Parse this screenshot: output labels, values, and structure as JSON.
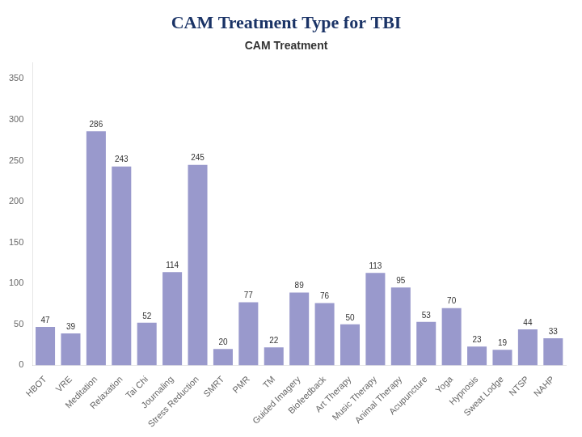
{
  "chart_data": {
    "type": "bar",
    "title": "CAM Treatment Type for TBI",
    "subtitle": "CAM Treatment",
    "categories": [
      "HBOT",
      "VRE",
      "Meditation",
      "Relaxation",
      "Tai Chi",
      "Journaling",
      "Stress Reduction",
      "SMRT",
      "PMR",
      "TM",
      "Guided Imagery",
      "Biofeedback",
      "Art Therapy",
      "Music Therapy",
      "Animal Therapy",
      "Acupuncture",
      "Yoga",
      "Hypnosis",
      "Sweat Lodge",
      "NTSP",
      "NAHP"
    ],
    "values": [
      47,
      39,
      286,
      243,
      52,
      114,
      245,
      20,
      77,
      22,
      89,
      76,
      50,
      113,
      95,
      53,
      70,
      23,
      19,
      44,
      33
    ],
    "color": "#9999cc",
    "ylim": [
      0,
      370
    ],
    "yticks": [
      0,
      50,
      100,
      150,
      200,
      250,
      300,
      350
    ],
    "grid": false,
    "data_labels": true
  }
}
